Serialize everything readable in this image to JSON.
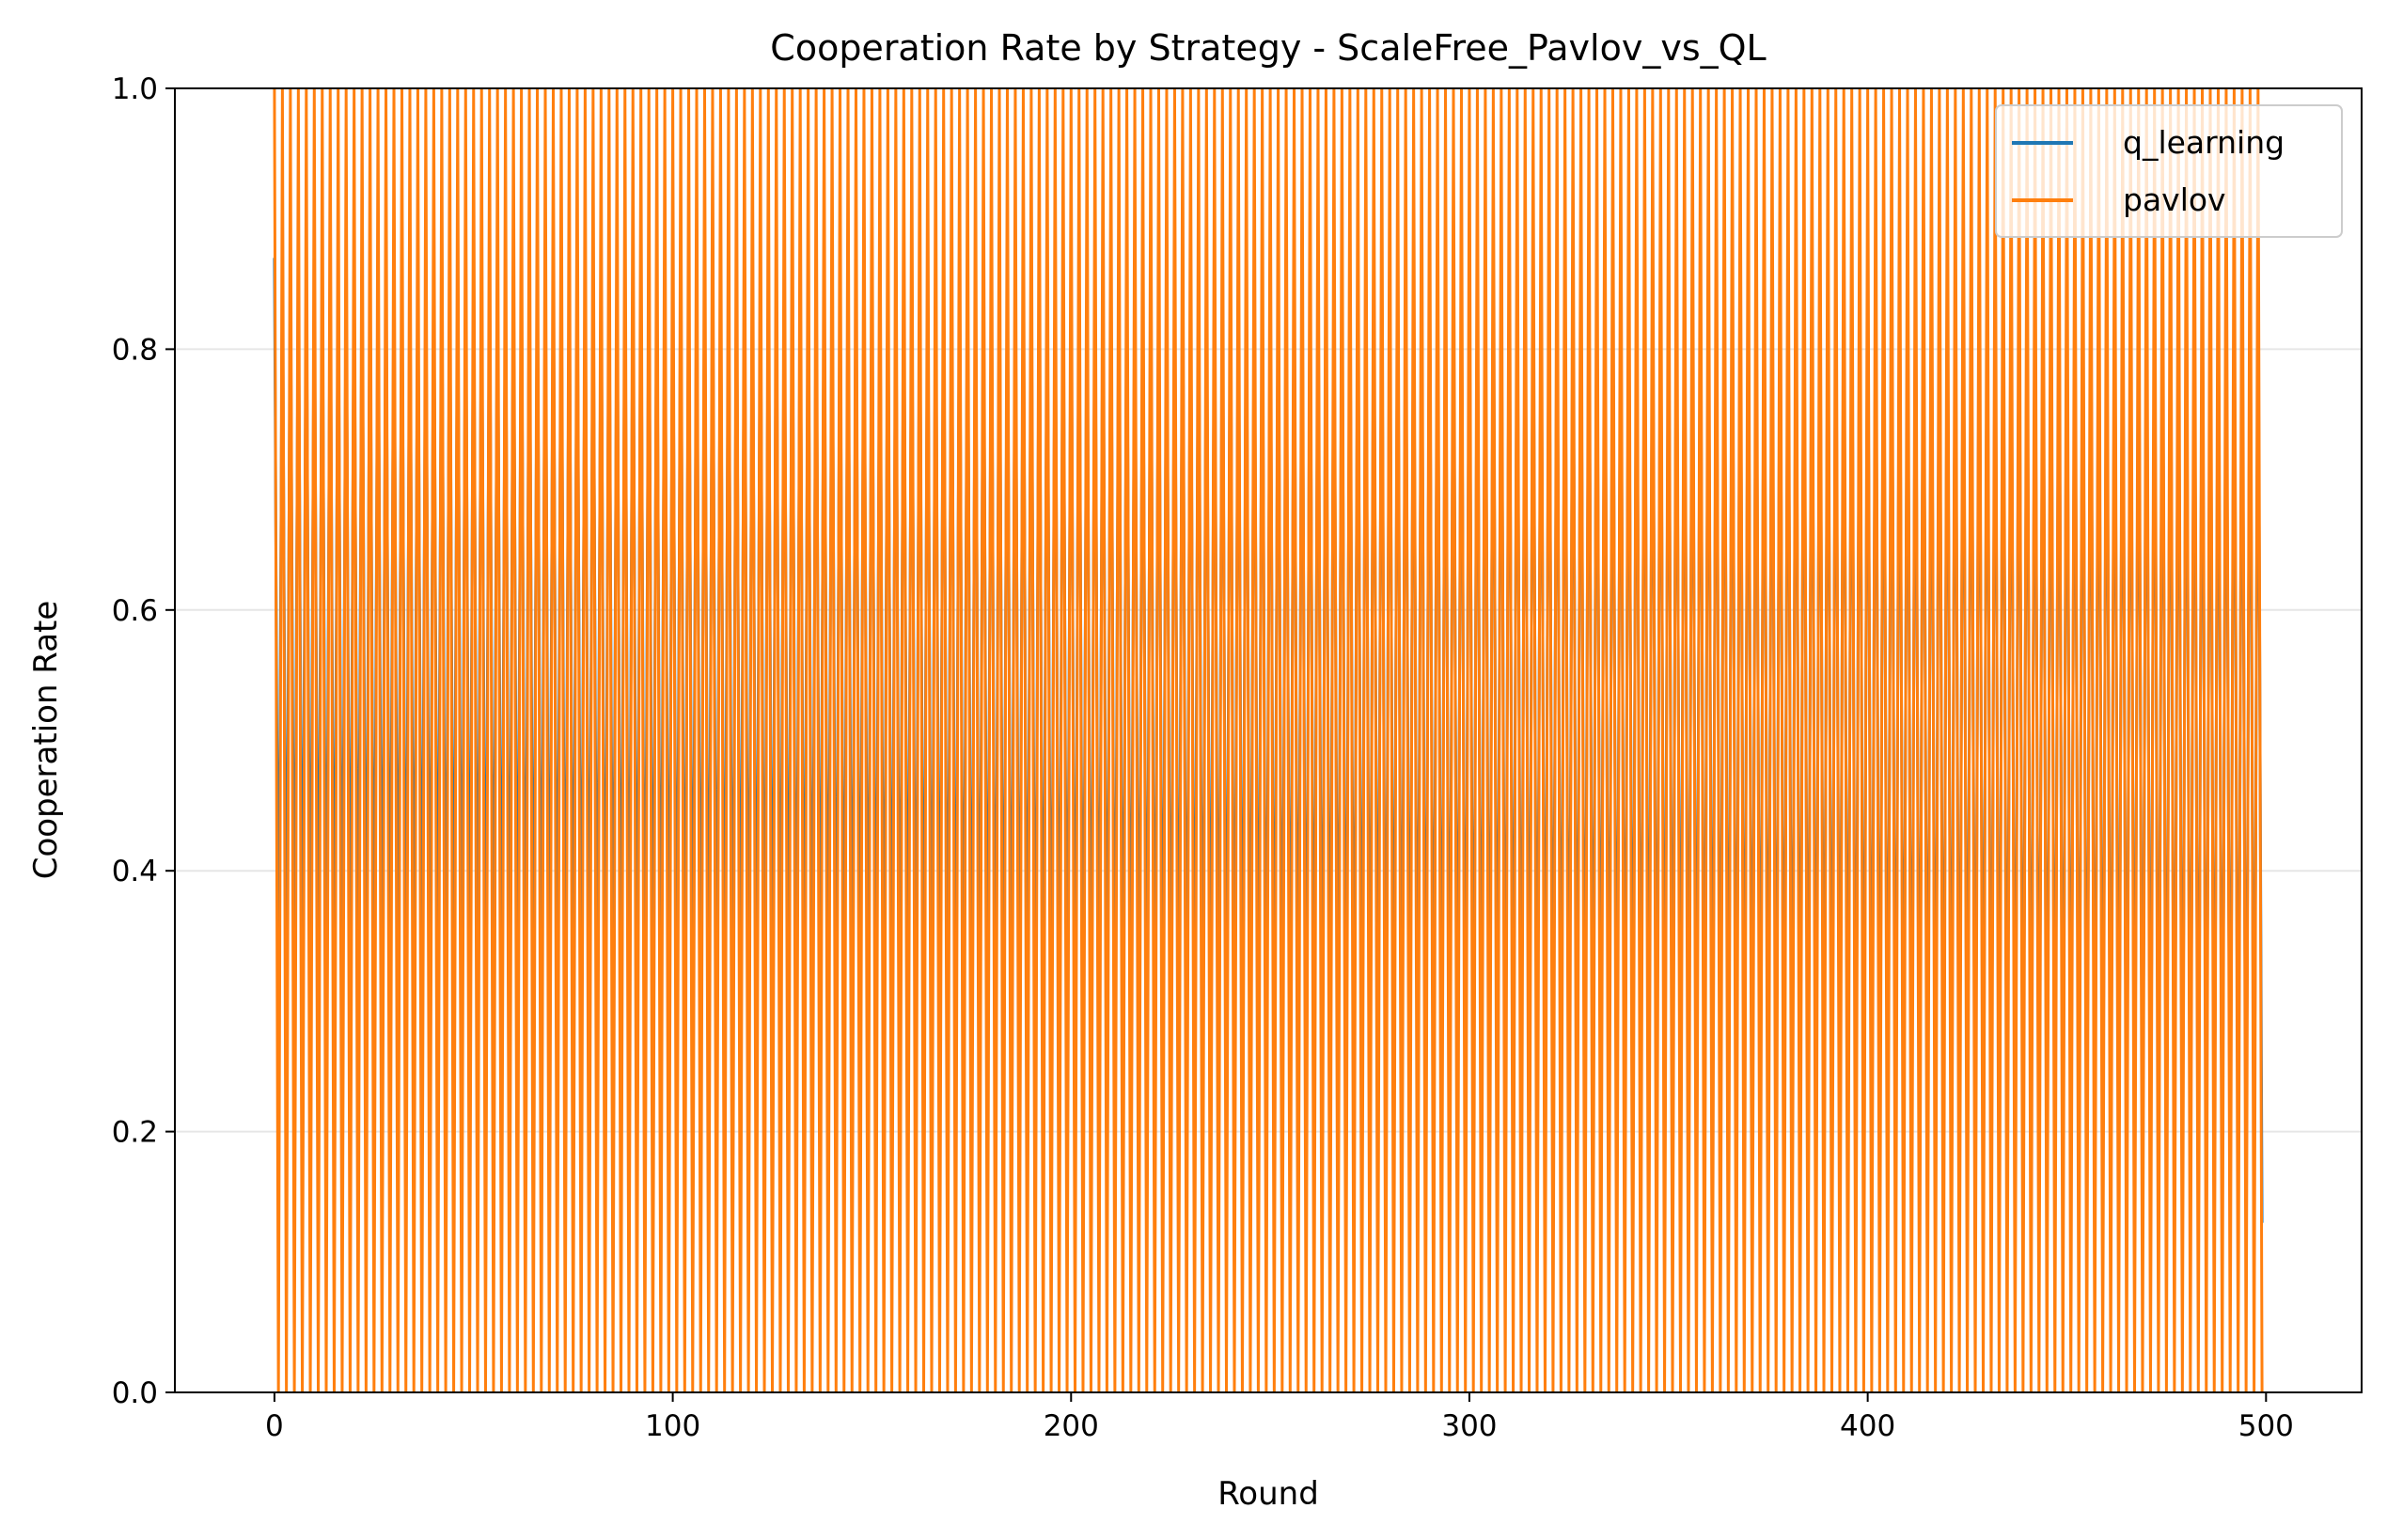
{
  "chart_data": {
    "type": "line",
    "title": "Cooperation Rate by Strategy - ScaleFree_Pavlov_vs_QL",
    "xlabel": "Round",
    "ylabel": "Cooperation Rate",
    "xlim": [
      -25,
      524
    ],
    "ylim": [
      0,
      1
    ],
    "xticks": [
      0,
      100,
      200,
      300,
      400,
      500
    ],
    "yticks": [
      0.0,
      0.2,
      0.4,
      0.6,
      0.8,
      1.0
    ],
    "xtick_labels": [
      "0",
      "100",
      "200",
      "300",
      "400",
      "500"
    ],
    "ytick_labels": [
      "0.0",
      "0.2",
      "0.4",
      "0.6",
      "0.8",
      "1.0"
    ],
    "grid": "horizontal",
    "legend_position": "top-right",
    "rounds": 500,
    "series": [
      {
        "name": "q_learning",
        "color": "#1f77b4",
        "pattern": "alternating",
        "high_start": 0.87,
        "high_end": 0.87,
        "low_start": 0.27,
        "low_end": 0.13
      },
      {
        "name": "pavlov",
        "color": "#ff7f0e",
        "pattern": "alternating",
        "high_start": 1.0,
        "high_end": 1.0,
        "low_start": 0.0,
        "low_end": 0.0
      }
    ]
  }
}
